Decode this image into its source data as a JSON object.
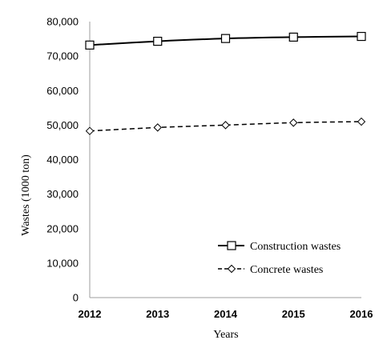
{
  "chart_data": {
    "type": "line",
    "title": "",
    "xlabel": "Years",
    "ylabel": "Wastes (1000 ton)",
    "x": [
      2012,
      2013,
      2014,
      2015,
      2016
    ],
    "x_tick_labels": [
      "2012",
      "2013",
      "2014",
      "2015",
      "2016"
    ],
    "ylim": [
      0,
      80000
    ],
    "y_ticks": [
      0,
      10000,
      20000,
      30000,
      40000,
      50000,
      60000,
      70000,
      80000
    ],
    "y_tick_labels": [
      "0",
      "10,000",
      "20,000",
      "30,000",
      "40,000",
      "50,000",
      "60,000",
      "70,000",
      "80,000"
    ],
    "grid": false,
    "legend_position": "bottom-right",
    "series": [
      {
        "name": "Construction wastes",
        "values": [
          73200,
          74300,
          75100,
          75500,
          75700
        ],
        "line_style": "solid",
        "marker": "square",
        "color": "#000000"
      },
      {
        "name": "Concrete wastes",
        "values": [
          48300,
          49300,
          50000,
          50700,
          51000
        ],
        "line_style": "dashed",
        "marker": "diamond",
        "color": "#000000"
      }
    ]
  }
}
